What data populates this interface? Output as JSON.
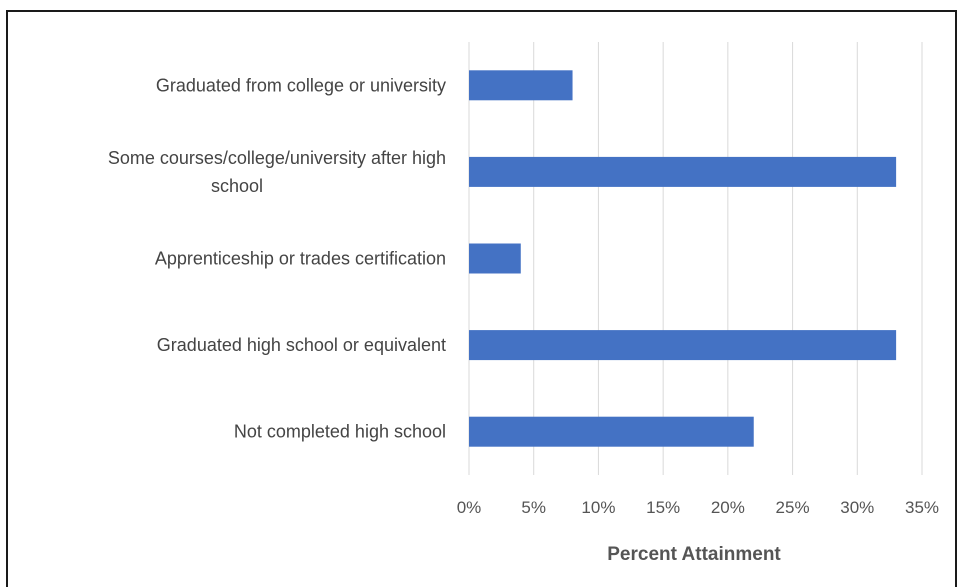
{
  "chart_data": {
    "type": "bar",
    "orientation": "horizontal",
    "title": "",
    "xlabel": "Percent Attainment",
    "ylabel": "",
    "categories": [
      "Graduated from college or university",
      "Some courses/college/university after high school",
      "Apprenticeship or trades certification",
      "Graduated high school or equivalent",
      "Not completed high school"
    ],
    "category_display_lines": [
      [
        "Graduated from college or university"
      ],
      [
        "Some courses/college/university after high",
        "school"
      ],
      [
        "Apprenticeship or trades certification"
      ],
      [
        "Graduated high school or equivalent"
      ],
      [
        "Not completed high school"
      ]
    ],
    "values": [
      8,
      33,
      4,
      33,
      22
    ],
    "xlim": [
      0,
      35
    ],
    "ticks": [
      "0%",
      "5%",
      "10%",
      "15%",
      "20%",
      "25%",
      "30%",
      "35%"
    ],
    "tick_values": [
      0,
      5,
      10,
      15,
      20,
      25,
      30,
      35
    ],
    "grid": true,
    "legend": "none",
    "bar_color": "#4472C4",
    "gridline_color": "#d9d9d9"
  }
}
